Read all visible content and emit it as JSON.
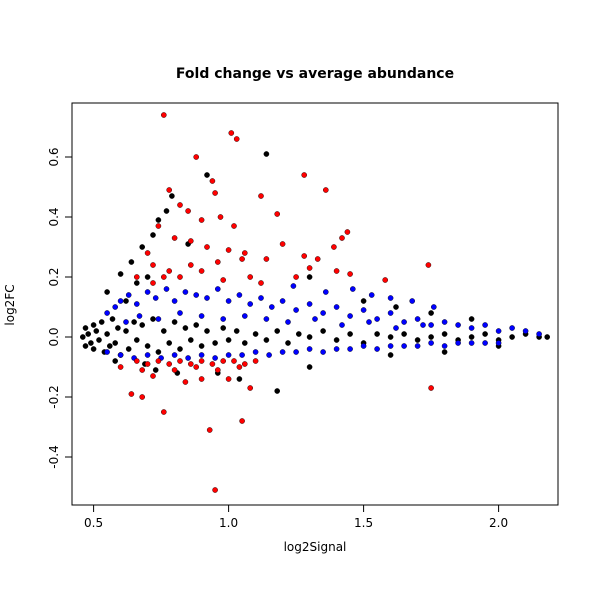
{
  "chart_data": {
    "type": "scatter",
    "title": "Fold change vs average abundance",
    "xlabel": "log2Signal",
    "ylabel": "log2FC",
    "xlim": [
      0.42,
      2.22
    ],
    "ylim": [
      -0.56,
      0.78
    ],
    "x_ticks": [
      0.5,
      1.0,
      1.5,
      2.0
    ],
    "x_tick_labels": [
      "0.5",
      "1.0",
      "1.5",
      "2.0"
    ],
    "y_ticks": [
      -0.4,
      -0.2,
      0.0,
      0.2,
      0.4,
      0.6
    ],
    "y_tick_labels": [
      "-0.4",
      "-0.2",
      "0.0",
      "0.2",
      "0.4",
      "0.6"
    ],
    "grid": false,
    "legend": "none",
    "colors": {
      "black": "#000000",
      "blue": "#0000ff",
      "red": "#ff0000"
    },
    "series": [
      {
        "color": "black",
        "points": [
          [
            0.46,
            0.0
          ],
          [
            0.47,
            0.03
          ],
          [
            0.47,
            -0.03
          ],
          [
            0.48,
            0.01
          ],
          [
            0.49,
            -0.02
          ],
          [
            0.5,
            0.04
          ],
          [
            0.5,
            -0.04
          ],
          [
            0.51,
            0.02
          ],
          [
            0.52,
            -0.01
          ],
          [
            0.53,
            0.05
          ],
          [
            0.54,
            -0.05
          ],
          [
            0.55,
            0.01
          ],
          [
            0.56,
            -0.03
          ],
          [
            0.57,
            0.06
          ],
          [
            0.58,
            -0.02
          ],
          [
            0.59,
            0.03
          ],
          [
            0.6,
            -0.06
          ],
          [
            0.62,
            0.02
          ],
          [
            0.63,
            -0.04
          ],
          [
            0.65,
            0.05
          ],
          [
            0.66,
            -0.01
          ],
          [
            0.68,
            0.04
          ],
          [
            0.7,
            -0.03
          ],
          [
            0.72,
            0.06
          ],
          [
            0.74,
            -0.05
          ],
          [
            0.76,
            0.02
          ],
          [
            0.78,
            -0.02
          ],
          [
            0.8,
            0.05
          ],
          [
            0.82,
            -0.04
          ],
          [
            0.84,
            0.03
          ],
          [
            0.86,
            -0.01
          ],
          [
            0.88,
            0.04
          ],
          [
            0.9,
            -0.03
          ],
          [
            0.92,
            0.02
          ],
          [
            0.95,
            -0.02
          ],
          [
            0.98,
            0.03
          ],
          [
            1.0,
            -0.01
          ],
          [
            1.03,
            0.02
          ],
          [
            1.06,
            -0.02
          ],
          [
            1.1,
            0.01
          ],
          [
            1.14,
            -0.01
          ],
          [
            1.18,
            0.02
          ],
          [
            1.22,
            -0.02
          ],
          [
            1.26,
            0.01
          ],
          [
            1.3,
            0.0
          ],
          [
            1.35,
            0.02
          ],
          [
            1.4,
            -0.01
          ],
          [
            1.45,
            0.01
          ],
          [
            1.5,
            -0.02
          ],
          [
            1.55,
            0.01
          ],
          [
            1.6,
            0.0
          ],
          [
            1.65,
            0.01
          ],
          [
            1.7,
            -0.01
          ],
          [
            1.75,
            0.0
          ],
          [
            1.8,
            0.01
          ],
          [
            1.85,
            -0.01
          ],
          [
            1.9,
            0.0
          ],
          [
            1.95,
            0.01
          ],
          [
            2.0,
            -0.01
          ],
          [
            2.05,
            0.0
          ],
          [
            2.1,
            0.01
          ],
          [
            2.15,
            0.0
          ],
          [
            2.18,
            0.0
          ],
          [
            0.64,
            0.25
          ],
          [
            0.6,
            0.21
          ],
          [
            0.55,
            0.15
          ],
          [
            0.68,
            0.3
          ],
          [
            0.72,
            0.34
          ],
          [
            0.74,
            0.39
          ],
          [
            0.77,
            0.42
          ],
          [
            0.79,
            0.47
          ],
          [
            0.92,
            0.54
          ],
          [
            1.14,
            0.61
          ],
          [
            0.85,
            0.31
          ],
          [
            0.66,
            0.18
          ],
          [
            0.7,
            0.2
          ],
          [
            0.62,
            0.12
          ],
          [
            1.3,
            0.2
          ],
          [
            1.5,
            0.12
          ],
          [
            1.62,
            0.1
          ],
          [
            1.75,
            0.08
          ],
          [
            1.9,
            0.06
          ],
          [
            0.73,
            -0.11
          ],
          [
            0.69,
            -0.09
          ],
          [
            0.81,
            -0.12
          ],
          [
            1.04,
            -0.14
          ],
          [
            1.18,
            -0.18
          ],
          [
            0.96,
            -0.12
          ],
          [
            1.3,
            -0.1
          ],
          [
            1.6,
            -0.06
          ],
          [
            1.8,
            -0.05
          ],
          [
            2.0,
            -0.03
          ],
          [
            0.58,
            -0.08
          ]
        ]
      },
      {
        "color": "blue",
        "points": [
          [
            0.55,
            0.08
          ],
          [
            0.58,
            0.1
          ],
          [
            0.6,
            0.12
          ],
          [
            0.63,
            0.14
          ],
          [
            0.66,
            0.11
          ],
          [
            0.7,
            0.15
          ],
          [
            0.73,
            0.13
          ],
          [
            0.77,
            0.16
          ],
          [
            0.8,
            0.12
          ],
          [
            0.84,
            0.15
          ],
          [
            0.88,
            0.14
          ],
          [
            0.92,
            0.13
          ],
          [
            0.96,
            0.16
          ],
          [
            1.0,
            0.12
          ],
          [
            1.04,
            0.14
          ],
          [
            1.08,
            0.11
          ],
          [
            1.12,
            0.13
          ],
          [
            1.16,
            0.1
          ],
          [
            1.2,
            0.12
          ],
          [
            1.25,
            0.09
          ],
          [
            1.3,
            0.11
          ],
          [
            1.35,
            0.08
          ],
          [
            1.4,
            0.1
          ],
          [
            1.45,
            0.07
          ],
          [
            1.5,
            0.09
          ],
          [
            1.55,
            0.06
          ],
          [
            1.6,
            0.08
          ],
          [
            1.65,
            0.05
          ],
          [
            1.7,
            0.06
          ],
          [
            1.75,
            0.04
          ],
          [
            1.8,
            0.05
          ],
          [
            1.85,
            0.04
          ],
          [
            1.9,
            0.03
          ],
          [
            1.95,
            0.04
          ],
          [
            2.0,
            0.02
          ],
          [
            2.05,
            0.03
          ],
          [
            2.1,
            0.02
          ],
          [
            2.15,
            0.01
          ],
          [
            0.55,
            -0.05
          ],
          [
            0.6,
            -0.06
          ],
          [
            0.65,
            -0.07
          ],
          [
            0.7,
            -0.06
          ],
          [
            0.75,
            -0.07
          ],
          [
            0.8,
            -0.06
          ],
          [
            0.85,
            -0.07
          ],
          [
            0.9,
            -0.06
          ],
          [
            0.95,
            -0.07
          ],
          [
            1.0,
            -0.06
          ],
          [
            1.05,
            -0.06
          ],
          [
            1.1,
            -0.05
          ],
          [
            1.15,
            -0.06
          ],
          [
            1.2,
            -0.05
          ],
          [
            1.25,
            -0.05
          ],
          [
            1.3,
            -0.04
          ],
          [
            1.35,
            -0.05
          ],
          [
            1.4,
            -0.04
          ],
          [
            1.45,
            -0.04
          ],
          [
            1.5,
            -0.03
          ],
          [
            1.55,
            -0.04
          ],
          [
            1.6,
            -0.03
          ],
          [
            1.65,
            -0.03
          ],
          [
            1.7,
            -0.03
          ],
          [
            1.75,
            -0.02
          ],
          [
            1.8,
            -0.03
          ],
          [
            1.85,
            -0.02
          ],
          [
            1.9,
            -0.02
          ],
          [
            1.95,
            -0.02
          ],
          [
            2.0,
            -0.02
          ],
          [
            0.62,
            0.05
          ],
          [
            0.67,
            0.07
          ],
          [
            0.74,
            0.06
          ],
          [
            0.82,
            0.08
          ],
          [
            0.9,
            0.07
          ],
          [
            0.98,
            0.06
          ],
          [
            1.06,
            0.07
          ],
          [
            1.14,
            0.06
          ],
          [
            1.22,
            0.05
          ],
          [
            1.32,
            0.06
          ],
          [
            1.42,
            0.04
          ],
          [
            1.52,
            0.05
          ],
          [
            1.62,
            0.03
          ],
          [
            1.72,
            0.04
          ],
          [
            1.24,
            0.17
          ],
          [
            1.36,
            0.15
          ],
          [
            1.46,
            0.16
          ],
          [
            1.53,
            0.14
          ],
          [
            1.6,
            0.13
          ],
          [
            1.68,
            0.12
          ],
          [
            1.76,
            0.1
          ]
        ]
      },
      {
        "color": "red",
        "points": [
          [
            0.76,
            0.74
          ],
          [
            1.01,
            0.68
          ],
          [
            1.03,
            0.66
          ],
          [
            1.28,
            0.54
          ],
          [
            1.36,
            0.49
          ],
          [
            0.88,
            0.6
          ],
          [
            0.94,
            0.52
          ],
          [
            0.95,
            0.48
          ],
          [
            0.78,
            0.49
          ],
          [
            0.82,
            0.44
          ],
          [
            0.85,
            0.42
          ],
          [
            0.9,
            0.39
          ],
          [
            0.97,
            0.4
          ],
          [
            1.12,
            0.47
          ],
          [
            1.18,
            0.41
          ],
          [
            1.02,
            0.37
          ],
          [
            0.74,
            0.37
          ],
          [
            0.8,
            0.33
          ],
          [
            0.86,
            0.32
          ],
          [
            0.92,
            0.3
          ],
          [
            1.0,
            0.29
          ],
          [
            1.06,
            0.28
          ],
          [
            1.14,
            0.26
          ],
          [
            1.2,
            0.31
          ],
          [
            1.28,
            0.27
          ],
          [
            1.39,
            0.3
          ],
          [
            1.44,
            0.35
          ],
          [
            1.42,
            0.33
          ],
          [
            0.7,
            0.28
          ],
          [
            0.72,
            0.24
          ],
          [
            0.78,
            0.22
          ],
          [
            0.82,
            0.2
          ],
          [
            0.86,
            0.24
          ],
          [
            0.9,
            0.22
          ],
          [
            0.96,
            0.25
          ],
          [
            1.05,
            0.26
          ],
          [
            1.3,
            0.23
          ],
          [
            1.33,
            0.26
          ],
          [
            1.4,
            0.22
          ],
          [
            1.45,
            0.21
          ],
          [
            1.58,
            0.19
          ],
          [
            1.74,
            0.24
          ],
          [
            0.66,
            0.2
          ],
          [
            0.72,
            0.18
          ],
          [
            0.76,
            0.2
          ],
          [
            0.98,
            0.19
          ],
          [
            1.08,
            0.2
          ],
          [
            1.12,
            0.18
          ],
          [
            1.25,
            0.2
          ],
          [
            0.64,
            -0.19
          ],
          [
            0.68,
            -0.2
          ],
          [
            0.76,
            -0.25
          ],
          [
            0.93,
            -0.31
          ],
          [
            0.95,
            -0.51
          ],
          [
            1.05,
            -0.28
          ],
          [
            0.84,
            -0.15
          ],
          [
            0.9,
            -0.14
          ],
          [
            1.0,
            -0.14
          ],
          [
            1.08,
            -0.17
          ],
          [
            1.75,
            -0.17
          ],
          [
            0.72,
            -0.13
          ],
          [
            0.66,
            -0.08
          ],
          [
            0.7,
            -0.09
          ],
          [
            0.74,
            -0.08
          ],
          [
            0.78,
            -0.09
          ],
          [
            0.82,
            -0.08
          ],
          [
            0.86,
            -0.09
          ],
          [
            0.9,
            -0.08
          ],
          [
            0.94,
            -0.09
          ],
          [
            0.98,
            -0.08
          ],
          [
            1.02,
            -0.08
          ],
          [
            1.06,
            -0.09
          ],
          [
            1.1,
            -0.08
          ],
          [
            0.6,
            -0.1
          ],
          [
            0.68,
            -0.11
          ],
          [
            0.8,
            -0.11
          ],
          [
            0.88,
            -0.1
          ],
          [
            0.96,
            -0.11
          ],
          [
            1.04,
            -0.1
          ]
        ]
      }
    ]
  }
}
